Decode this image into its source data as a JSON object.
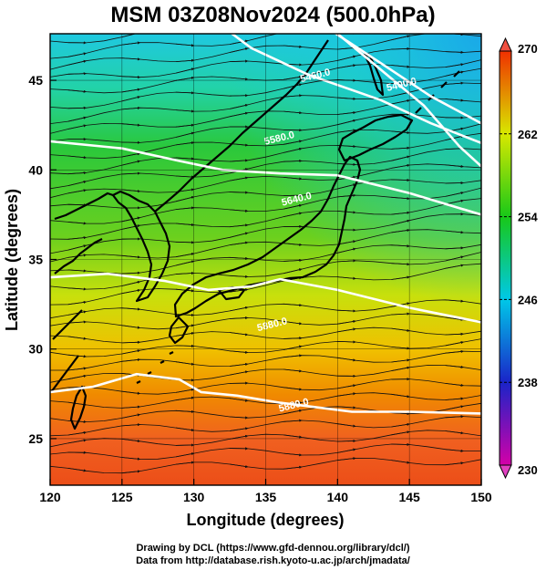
{
  "title": "MSM 03Z08Nov2024 (500.0hPa)",
  "chart_data": {
    "type": "heatmap",
    "title": "MSM 03Z08Nov2024 (500.0hPa)",
    "xlabel": "Longitude (degrees)",
    "ylabel": "Latitude  (degrees)",
    "xlim": [
      120,
      150
    ],
    "ylim": [
      22.4,
      47.6
    ],
    "x_ticks": [
      "120",
      "125",
      "130",
      "135",
      "140",
      "145",
      "150"
    ],
    "y_ticks": [
      "25",
      "30",
      "35",
      "40",
      "45"
    ],
    "grid": true,
    "colorbar": {
      "min": 230,
      "max": 270,
      "ticks": [
        "270",
        "262",
        "254",
        "246",
        "238",
        "230"
      ],
      "stops": [
        {
          "value": 230,
          "color": "#d400a8"
        },
        {
          "value": 238,
          "color": "#1a24c8"
        },
        {
          "value": 246,
          "color": "#00c8e8"
        },
        {
          "value": 254,
          "color": "#18c818"
        },
        {
          "value": 262,
          "color": "#d8e800"
        },
        {
          "value": 270,
          "color": "#f03000"
        }
      ]
    },
    "contours": [
      {
        "label": "5400.0",
        "points": [
          [
            138,
            48.6
          ],
          [
            143.5,
            45.7
          ],
          [
            146.5,
            44.1
          ],
          [
            150,
            42.6
          ]
        ]
      },
      {
        "label": "5400.0",
        "points": [
          [
            137,
            48.8
          ],
          [
            140,
            47.6
          ],
          [
            143,
            45.6
          ],
          [
            146,
            43.6
          ],
          [
            148.5,
            41.3
          ],
          [
            150,
            40.2
          ]
        ]
      },
      {
        "label": "5460.0",
        "points": [
          [
            131,
            48.6
          ],
          [
            134,
            46.8
          ],
          [
            138,
            45.3
          ],
          [
            143,
            43.9
          ],
          [
            146.5,
            42.6
          ],
          [
            150,
            41.5
          ]
        ]
      },
      {
        "label": "5580.0",
        "points": [
          [
            120,
            41.6
          ],
          [
            125,
            41.2
          ],
          [
            129,
            40.5
          ],
          [
            132,
            40.0
          ],
          [
            136,
            39.8
          ],
          [
            140,
            39.7
          ],
          [
            145,
            38.7
          ],
          [
            150,
            37.5
          ]
        ]
      },
      {
        "label": "5700.0",
        "points": [
          [
            120,
            34.0
          ],
          [
            124,
            34.2
          ],
          [
            128,
            33.8
          ],
          [
            131,
            33.3
          ],
          [
            134,
            33.5
          ],
          [
            136,
            33.9
          ],
          [
            140,
            33.3
          ],
          [
            145,
            32.3
          ],
          [
            150,
            31.5
          ]
        ]
      },
      {
        "label": "5880.0",
        "points": [
          [
            120,
            27.6
          ],
          [
            123,
            27.9
          ],
          [
            126,
            28.6
          ],
          [
            129,
            28.3
          ],
          [
            130.5,
            27.6
          ],
          [
            133,
            27.4
          ],
          [
            136,
            27.0
          ],
          [
            141,
            26.5
          ],
          [
            145,
            26.5
          ],
          [
            150,
            26.4
          ]
        ]
      }
    ],
    "contour_labels": [
      {
        "text": "5400.0",
        "lon": 144.5,
        "lat": 44.6
      },
      {
        "text": "5460.0",
        "lon": 138.5,
        "lat": 45.1
      },
      {
        "text": "5580.0",
        "lon": 136.0,
        "lat": 41.6
      },
      {
        "text": "5640.0",
        "lon": 137.2,
        "lat": 38.2
      },
      {
        "text": "5880.0",
        "lon": 135.5,
        "lat": 31.2
      },
      {
        "text": "5880.0",
        "lon": 137.0,
        "lat": 26.7
      }
    ],
    "wind_direction": "westerly"
  },
  "credits": {
    "line1": "Drawing by DCL (https://www.gfd-dennou.org/library/dcl/)",
    "line2": "Data from http://database.rish.kyoto-u.ac.jp/arch/jmadata/"
  }
}
